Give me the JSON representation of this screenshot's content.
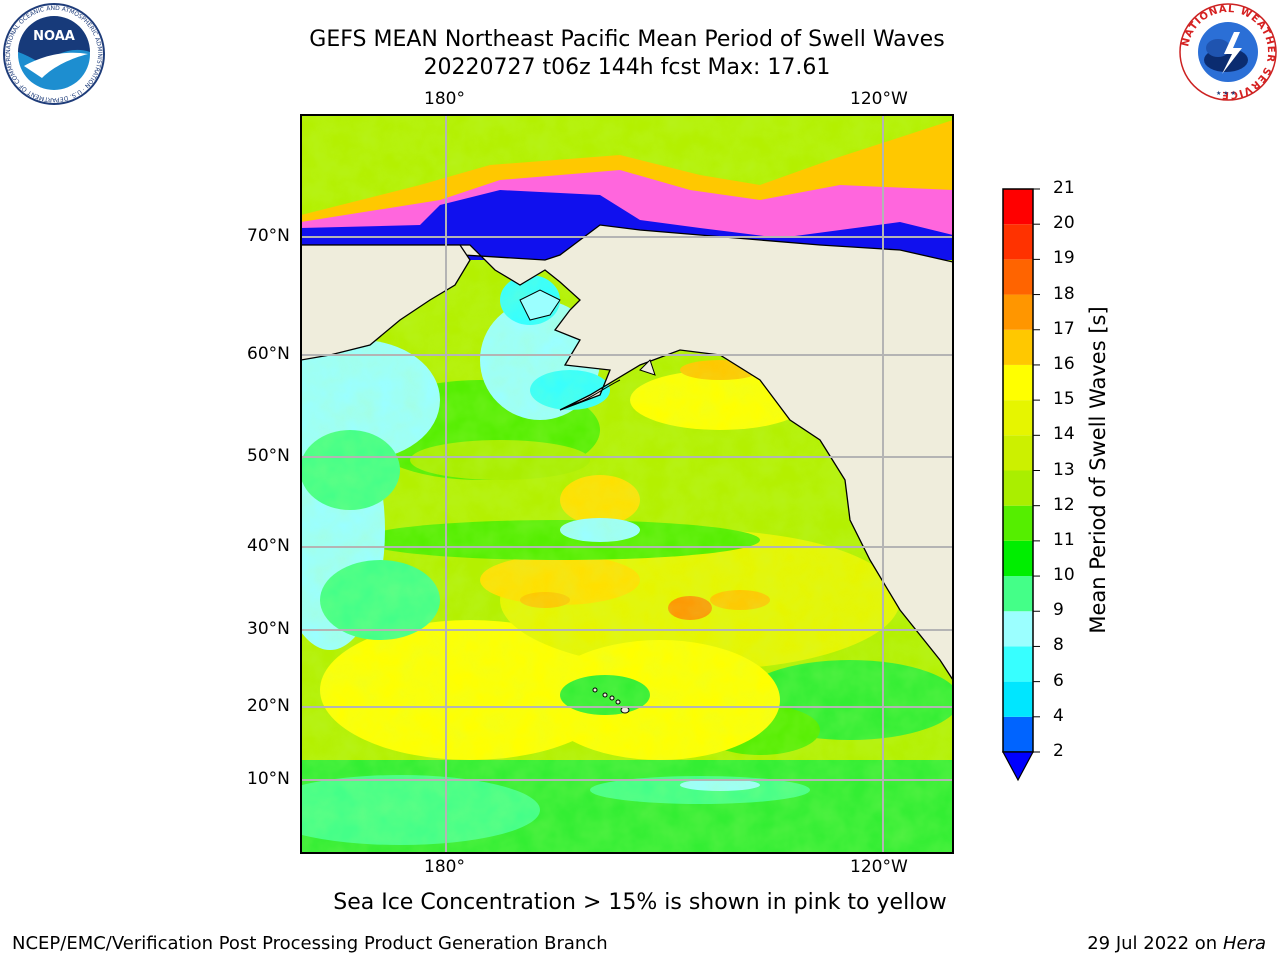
{
  "header": {
    "title_line1": "GEFS MEAN Northeast Pacific Mean Period of Swell Waves",
    "title_line2": "20220727 t06z 144h fcst   Max: 17.61"
  },
  "logos": {
    "left": {
      "name": "noaa-logo",
      "text": "NOAA",
      "ring_text": "NATIONAL OCEANIC AND ATMOSPHERIC ADMINISTRATION · U.S. DEPARTMENT OF COMMERCE"
    },
    "right": {
      "name": "nws-logo",
      "ring_text": "NATIONAL WEATHER SERVICE"
    }
  },
  "map": {
    "top_ticks": [
      "180°",
      "120°W"
    ],
    "bottom_ticks": [
      "180°",
      "120°W"
    ],
    "lat_ticks": [
      "70°N",
      "60°N",
      "50°N",
      "40°N",
      "30°N",
      "20°N",
      "10°N"
    ],
    "colors": {
      "land": "#efeddc",
      "grid": "#b4b4b4"
    }
  },
  "colorbar": {
    "label": "Mean Period of Swell Waves [s]",
    "levels": [
      "2",
      "4",
      "6",
      "8",
      "9",
      "10",
      "11",
      "12",
      "13",
      "14",
      "15",
      "16",
      "17",
      "18",
      "19",
      "20",
      "21"
    ],
    "colors": [
      "#0064ff",
      "#00e6ff",
      "#37ffff",
      "#9bffff",
      "#44ff88",
      "#00ee00",
      "#55ee00",
      "#aaee00",
      "#ccf000",
      "#e6f500",
      "#ffff00",
      "#ffc800",
      "#ff9600",
      "#ff6400",
      "#ff3200",
      "#ff0000"
    ],
    "under_color": "#0000ff"
  },
  "note": "Sea Ice Concentration > 15% is shown in pink to yellow",
  "footer": {
    "left": "NCEP/EMC/Verification Post Processing Product Generation Branch",
    "right_date": "29 Jul 2022 on ",
    "right_host": "Hera"
  }
}
